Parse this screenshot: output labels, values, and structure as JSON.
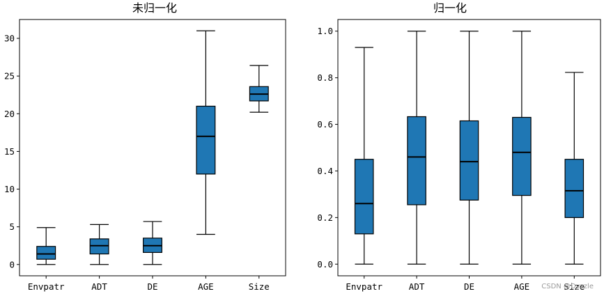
{
  "chart_data": [
    {
      "type": "box",
      "title": "未归一化",
      "categories": [
        "Envpatr",
        "ADT",
        "DE",
        "AGE",
        "Size"
      ],
      "ylim": [
        -1.5,
        32.5
      ],
      "yticks": [
        0,
        5,
        10,
        15,
        20,
        25,
        30
      ],
      "ytick_labels": [
        "0",
        "5",
        "10",
        "15",
        "20",
        "25",
        "30"
      ],
      "boxes": [
        {
          "whislo": 0,
          "q1": 0.7,
          "med": 1.4,
          "q3": 2.4,
          "whishi": 4.9
        },
        {
          "whislo": 0,
          "q1": 1.4,
          "med": 2.5,
          "q3": 3.4,
          "whishi": 5.3
        },
        {
          "whislo": 0,
          "q1": 1.6,
          "med": 2.5,
          "q3": 3.5,
          "whishi": 5.7
        },
        {
          "whislo": 4.0,
          "q1": 12.0,
          "med": 17.0,
          "q3": 21.0,
          "whishi": 31.0
        },
        {
          "whislo": 20.2,
          "q1": 21.7,
          "med": 22.6,
          "q3": 23.6,
          "whishi": 26.4
        }
      ],
      "grid": false,
      "box_color": "#1f77b4"
    },
    {
      "type": "box",
      "title": "归一化",
      "categories": [
        "Envpatr",
        "ADT",
        "DE",
        "AGE",
        "Size"
      ],
      "ylim": [
        -0.05,
        1.05
      ],
      "yticks": [
        0.0,
        0.2,
        0.4,
        0.6,
        0.8,
        1.0
      ],
      "ytick_labels": [
        "0.0",
        "0.2",
        "0.4",
        "0.6",
        "0.8",
        "1.0"
      ],
      "boxes": [
        {
          "whislo": 0,
          "q1": 0.13,
          "med": 0.26,
          "q3": 0.45,
          "whishi": 0.93
        },
        {
          "whislo": 0,
          "q1": 0.255,
          "med": 0.46,
          "q3": 0.633,
          "whishi": 1.0
        },
        {
          "whislo": 0,
          "q1": 0.275,
          "med": 0.44,
          "q3": 0.615,
          "whishi": 1.0
        },
        {
          "whislo": 0,
          "q1": 0.295,
          "med": 0.48,
          "q3": 0.63,
          "whishi": 1.0
        },
        {
          "whislo": 0,
          "q1": 0.2,
          "med": 0.315,
          "q3": 0.45,
          "whishi": 0.823
        }
      ],
      "grid": false,
      "box_color": "#1f77b4"
    }
  ],
  "watermark": "CSDN @Dyzzle"
}
